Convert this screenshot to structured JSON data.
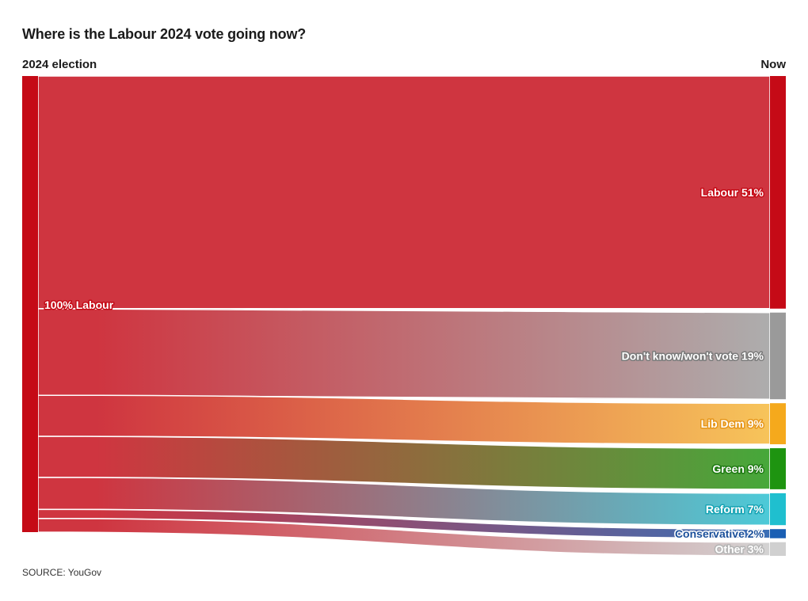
{
  "chart_data": {
    "type": "sankey",
    "title": "Where is the Labour 2024 vote going now?",
    "left_label": "2024 election",
    "right_label": "Now",
    "source": {
      "name": "Labour",
      "value": 100,
      "label": "100% Labour",
      "color": "#c50a16",
      "flow_color": "#cf3540"
    },
    "targets": [
      {
        "name": "Labour",
        "value": 51,
        "label": "Labour 51%",
        "color": "#c50a16",
        "flow_color": "#cf3540",
        "text_color": "#ffffff",
        "outline": "#c50a16"
      },
      {
        "name": "Don't know/won't vote",
        "value": 19,
        "label": "Don't know/won't vote 19%",
        "color": "#9a9a9a",
        "flow_color": "#adadad",
        "text_color": "#ffffff",
        "outline": "#7a7a7a"
      },
      {
        "name": "Lib Dem",
        "value": 9,
        "label": "Lib Dem 9%",
        "color": "#f5a91c",
        "flow_color": "#f7c45a",
        "text_color": "#ffffff",
        "outline": "#e6961a"
      },
      {
        "name": "Green",
        "value": 9,
        "label": "Green 9%",
        "color": "#1e9410",
        "flow_color": "#46a83a",
        "text_color": "#ffffff",
        "outline": "#1e7a12"
      },
      {
        "name": "Reform",
        "value": 7,
        "label": "Reform 7%",
        "color": "#1fbfcf",
        "flow_color": "#4ccad8",
        "text_color": "#ffffff",
        "outline": "#18a4b4"
      },
      {
        "name": "Conservative",
        "value": 2,
        "label": "Conservative 2%",
        "color": "#1a5fb4",
        "flow_color": "#3a6fb6",
        "text_color": "#1a4f9a",
        "outline": "#ffffff"
      },
      {
        "name": "Other",
        "value": 3,
        "label": "Other 3%",
        "color": "#d0d0d0",
        "flow_color": "#d3d3d3",
        "text_color": "#ffffff",
        "outline": "#b5b5b5"
      }
    ]
  },
  "footer": {
    "source_text": "SOURCE: YouGov"
  }
}
